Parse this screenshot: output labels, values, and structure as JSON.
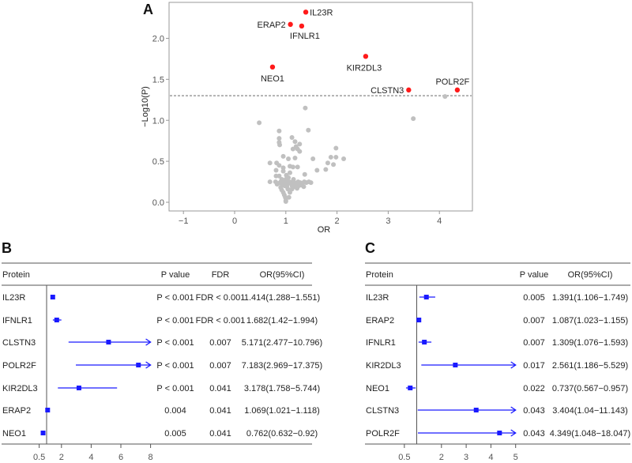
{
  "chart_data": [
    {
      "type": "scatter",
      "panel_label": "A",
      "xlabel": "OR",
      "ylabel": "−Log10(P)",
      "xlim": [
        -1.3,
        4.6
      ],
      "ylim": [
        -0.1,
        2.4
      ],
      "xticks": [
        "−1",
        "0",
        "1",
        "2",
        "3",
        "4"
      ],
      "xtick_values": [
        -1,
        0,
        1,
        2,
        3,
        4
      ],
      "yticks": [
        "0.0",
        "0.5",
        "1.0",
        "1.5",
        "2.0"
      ],
      "ytick_values": [
        0,
        0.5,
        1.0,
        1.5,
        2.0
      ],
      "threshold": 1.3,
      "colors": {
        "significant": "#ff1a1a",
        "nonsignificant": "#c0c0c0",
        "threshold": "#888888"
      },
      "significant": [
        {
          "name": "IL23R",
          "x": 1.39,
          "y": 2.32
        },
        {
          "name": "ERAP2",
          "x": 1.09,
          "y": 2.17
        },
        {
          "name": "IFNLR1",
          "x": 1.31,
          "y": 2.15
        },
        {
          "name": "KIR2DL3",
          "x": 2.56,
          "y": 1.78
        },
        {
          "name": "NEO1",
          "x": 0.74,
          "y": 1.65
        },
        {
          "name": "CLSTN3",
          "x": 3.4,
          "y": 1.37
        },
        {
          "name": "POLR2F",
          "x": 4.35,
          "y": 1.37
        }
      ],
      "nonsignificant": [
        [
          0.48,
          0.97
        ],
        [
          1.38,
          1.15
        ],
        [
          1.44,
          0.88
        ],
        [
          3.49,
          1.02
        ],
        [
          4.11,
          1.29
        ],
        [
          0.87,
          0.87
        ],
        [
          0.87,
          0.78
        ],
        [
          0.87,
          0.73
        ],
        [
          0.88,
          0.7
        ],
        [
          1.12,
          0.79
        ],
        [
          1.18,
          0.74
        ],
        [
          1.27,
          0.71
        ],
        [
          1.14,
          0.65
        ],
        [
          1.23,
          0.65
        ],
        [
          1.27,
          0.62
        ],
        [
          1.2,
          0.68
        ],
        [
          0.95,
          0.56
        ],
        [
          1.05,
          0.53
        ],
        [
          1.18,
          0.54
        ],
        [
          1.53,
          0.53
        ],
        [
          1.98,
          0.66
        ],
        [
          1.88,
          0.55
        ],
        [
          1.98,
          0.55
        ],
        [
          2.13,
          0.53
        ],
        [
          1.93,
          0.46
        ],
        [
          1.82,
          0.48
        ],
        [
          1.78,
          0.4
        ],
        [
          1.61,
          0.39
        ],
        [
          0.69,
          0.48
        ],
        [
          0.82,
          0.48
        ],
        [
          0.87,
          0.45
        ],
        [
          0.81,
          0.39
        ],
        [
          0.95,
          0.42
        ],
        [
          0.95,
          0.38
        ],
        [
          1.08,
          0.44
        ],
        [
          1.14,
          0.43
        ],
        [
          1.23,
          0.43
        ],
        [
          1.37,
          0.34
        ],
        [
          0.81,
          0.32
        ],
        [
          0.87,
          0.32
        ],
        [
          1.01,
          0.33
        ],
        [
          1.08,
          0.36
        ],
        [
          1.05,
          0.3
        ],
        [
          0.69,
          0.25
        ],
        [
          0.8,
          0.25
        ],
        [
          0.85,
          0.23
        ],
        [
          0.9,
          0.25
        ],
        [
          0.95,
          0.24
        ],
        [
          1.0,
          0.26
        ],
        [
          1.03,
          0.22
        ],
        [
          1.07,
          0.25
        ],
        [
          1.1,
          0.23
        ],
        [
          1.13,
          0.25
        ],
        [
          1.17,
          0.24
        ],
        [
          1.2,
          0.22
        ],
        [
          1.24,
          0.25
        ],
        [
          1.28,
          0.24
        ],
        [
          1.32,
          0.23
        ],
        [
          1.36,
          0.25
        ],
        [
          1.4,
          0.24
        ],
        [
          1.45,
          0.25
        ],
        [
          1.49,
          0.24
        ],
        [
          0.83,
          0.22
        ],
        [
          0.93,
          0.21
        ],
        [
          0.98,
          0.2
        ],
        [
          1.02,
          0.19
        ],
        [
          1.12,
          0.2
        ],
        [
          1.18,
          0.19
        ],
        [
          1.25,
          0.2
        ],
        [
          1.3,
          0.21
        ],
        [
          1.0,
          0.28
        ],
        [
          0.92,
          0.28
        ],
        [
          1.15,
          0.28
        ],
        [
          0.92,
          0.15
        ],
        [
          0.95,
          0.12
        ],
        [
          0.97,
          0.09
        ],
        [
          0.99,
          0.06
        ],
        [
          1.0,
          0.02
        ],
        [
          1.0,
          0.01
        ],
        [
          1.08,
          0.12
        ],
        [
          1.04,
          0.16
        ],
        [
          1.12,
          0.16
        ],
        [
          0.9,
          0.18
        ],
        [
          1.22,
          0.17
        ],
        [
          1.35,
          0.19
        ],
        [
          1.06,
          0.06
        ]
      ]
    },
    {
      "type": "forest",
      "panel_label": "B",
      "headers": {
        "protein": "Protein",
        "p": "P value",
        "fdr": "FDR",
        "or": "OR(95%CI)"
      },
      "xticks": [
        "0.5",
        "2",
        "4",
        "6",
        "8"
      ],
      "xtick_values": [
        0.5,
        2,
        4,
        6,
        8
      ],
      "ref": 1,
      "xmax": 8,
      "color": "#1a1aff",
      "rows": [
        {
          "protein": "IL23R",
          "p": "P < 0.001",
          "fdr": "FDR < 0.001",
          "or_text": "1.414(1.288−1.551)",
          "or": 1.414,
          "lo": 1.288,
          "hi": 1.551
        },
        {
          "protein": "IFNLR1",
          "p": "P < 0.001",
          "fdr": "FDR < 0.001",
          "or_text": "1.682(1.42−1.994)",
          "or": 1.682,
          "lo": 1.42,
          "hi": 1.994
        },
        {
          "protein": "CLSTN3",
          "p": "P < 0.001",
          "fdr": "0.007",
          "or_text": "5.171(2.477−10.796)",
          "or": 5.171,
          "lo": 2.477,
          "hi": 10.796
        },
        {
          "protein": "POLR2F",
          "p": "P < 0.001",
          "fdr": "0.007",
          "or_text": "7.183(2.969−17.375)",
          "or": 7.183,
          "lo": 2.969,
          "hi": 17.375
        },
        {
          "protein": "KIR2DL3",
          "p": "P < 0.001",
          "fdr": "0.041",
          "or_text": "3.178(1.758−5.744)",
          "or": 3.178,
          "lo": 1.758,
          "hi": 5.744
        },
        {
          "protein": "ERAP2",
          "p": "0.004",
          "fdr": "0.041",
          "or_text": "1.069(1.021−1.118)",
          "or": 1.069,
          "lo": 1.021,
          "hi": 1.118
        },
        {
          "protein": "NEO1",
          "p": "0.005",
          "fdr": "0.041",
          "or_text": "0.762(0.632−0.92)",
          "or": 0.762,
          "lo": 0.632,
          "hi": 0.92
        }
      ]
    },
    {
      "type": "forest",
      "panel_label": "C",
      "headers": {
        "protein": "Protein",
        "p": "P value",
        "or": "OR(95%CI)"
      },
      "xticks": [
        "0.5",
        "2",
        "3",
        "4",
        "5"
      ],
      "xtick_values": [
        0.5,
        2,
        3,
        4,
        5
      ],
      "ref": 1,
      "xmax": 5,
      "color": "#1a1aff",
      "rows": [
        {
          "protein": "IL23R",
          "p": "0.005",
          "or_text": "1.391(1.106−1.749)",
          "or": 1.391,
          "lo": 1.106,
          "hi": 1.749
        },
        {
          "protein": "ERAP2",
          "p": "0.007",
          "or_text": "1.087(1.023−1.155)",
          "or": 1.087,
          "lo": 1.023,
          "hi": 1.155
        },
        {
          "protein": "IFNLR1",
          "p": "0.007",
          "or_text": "1.309(1.076−1.593)",
          "or": 1.309,
          "lo": 1.076,
          "hi": 1.593
        },
        {
          "protein": "KIR2DL3",
          "p": "0.017",
          "or_text": "2.561(1.186−5.529)",
          "or": 2.561,
          "lo": 1.186,
          "hi": 5.529
        },
        {
          "protein": "NEO1",
          "p": "0.022",
          "or_text": "0.737(0.567−0.957)",
          "or": 0.737,
          "lo": 0.567,
          "hi": 0.957
        },
        {
          "protein": "CLSTN3",
          "p": "0.043",
          "or_text": "3.404(1.04−11.143)",
          "or": 3.404,
          "lo": 1.04,
          "hi": 11.143
        },
        {
          "protein": "POLR2F",
          "p": "0.043",
          "or_text": "4.349(1.048−18.047)",
          "or": 4.349,
          "lo": 1.048,
          "hi": 18.047
        }
      ]
    }
  ]
}
